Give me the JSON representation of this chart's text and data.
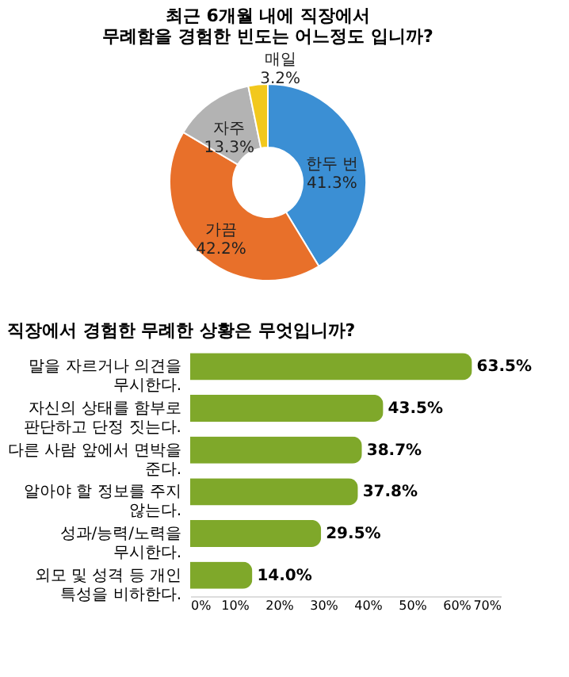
{
  "chart_data": [
    {
      "type": "donut",
      "title": "최근 6개월 내에 직장에서 무례함을 경험한 빈도는 어느정도 입니까?",
      "categories": [
        "한두 번",
        "가끔",
        "자주",
        "매일"
      ],
      "values": [
        41.3,
        42.2,
        13.3,
        3.2
      ],
      "colors": [
        "#3b8fd4",
        "#e8702a",
        "#b3b3b3",
        "#f2c81d"
      ],
      "value_labels": [
        "41.3%",
        "42.2%",
        "13.3%",
        "3.2%"
      ]
    },
    {
      "type": "bar",
      "orientation": "horizontal",
      "title": "직장에서 경험한 무례한 상황은 무엇입니까?",
      "categories": [
        "말을 자르거나 의견을 무시한다.",
        "자신의 상태를 함부로 판단하고 단정 짓는다.",
        "다른 사람 앞에서 면박을 준다.",
        "알아야 할 정보를 주지 않는다.",
        "성과/능력/노력을 무시한다.",
        "외모 및 성격 등 개인 특성을 비하한다."
      ],
      "values": [
        63.5,
        43.5,
        38.7,
        37.8,
        29.5,
        14.0
      ],
      "color": "#7fa82a",
      "value_labels": [
        "63.5%",
        "43.5%",
        "38.7%",
        "37.8%",
        "29.5%",
        "14.0%"
      ],
      "xlim": [
        0,
        70
      ],
      "xticks": [
        {
          "value": 0,
          "label": "0%"
        },
        {
          "value": 10,
          "label": "10%"
        },
        {
          "value": 20,
          "label": "20%"
        },
        {
          "value": 30,
          "label": "30%"
        },
        {
          "value": 40,
          "label": "40%"
        },
        {
          "value": 50,
          "label": "50%"
        },
        {
          "value": 60,
          "label": "60%"
        },
        {
          "value": 70,
          "label": "70%"
        }
      ]
    }
  ]
}
